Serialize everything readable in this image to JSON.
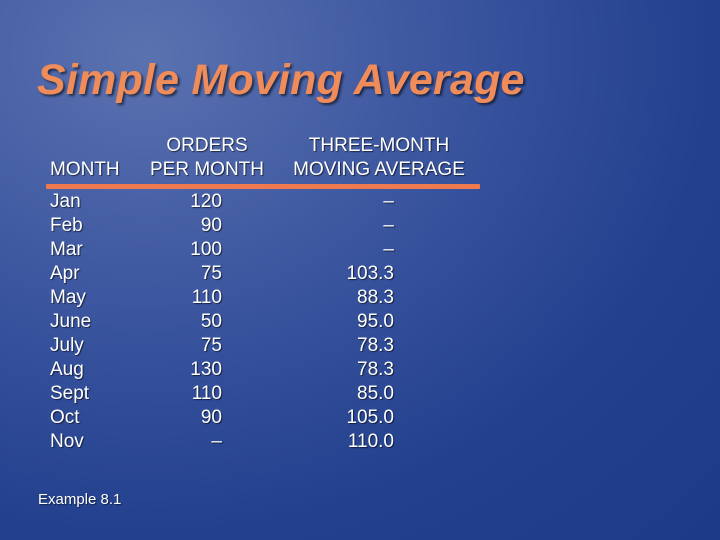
{
  "title": "Simple Moving Average",
  "headers": {
    "month": "MONTH",
    "orders_line1": "ORDERS",
    "orders_line2": "PER MONTH",
    "average_line1": "THREE-MONTH",
    "average_line2": "MOVING AVERAGE"
  },
  "rows": [
    {
      "month": "Jan",
      "orders": "120",
      "average": "–"
    },
    {
      "month": "Feb",
      "orders": "90",
      "average": "–"
    },
    {
      "month": "Mar",
      "orders": "100",
      "average": "–"
    },
    {
      "month": "Apr",
      "orders": "75",
      "average": "103.3"
    },
    {
      "month": "May",
      "orders": "110",
      "average": "88.3"
    },
    {
      "month": "June",
      "orders": "50",
      "average": "95.0"
    },
    {
      "month": "July",
      "orders": "75",
      "average": "78.3"
    },
    {
      "month": "Aug",
      "orders": "130",
      "average": "78.3"
    },
    {
      "month": "Sept",
      "orders": "110",
      "average": "85.0"
    },
    {
      "month": "Oct",
      "orders": "90",
      "average": "105.0"
    },
    {
      "month": "Nov",
      "orders": "–",
      "average": "110.0"
    }
  ],
  "footnote": "Example 8.1",
  "colors": {
    "title": "#f08c5a",
    "rule": "#f07a50",
    "background": "#2a4794",
    "text": "#ffffff"
  }
}
